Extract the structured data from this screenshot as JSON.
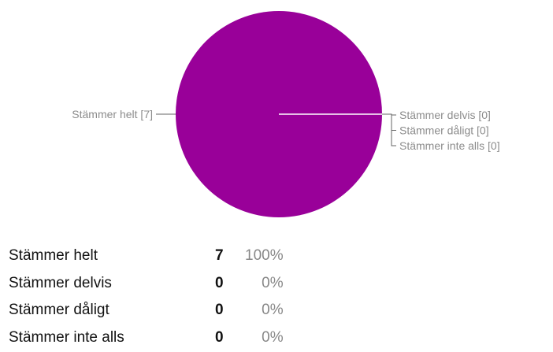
{
  "chart_data": {
    "type": "pie",
    "categories": [
      "Stämmer helt",
      "Stämmer delvis",
      "Stämmer dåligt",
      "Stämmer inte alls"
    ],
    "values": [
      7,
      0,
      0,
      0
    ],
    "callout_labels": [
      "Stämmer helt [7]",
      "Stämmer delvis [0]",
      "Stämmer dåligt [0]",
      "Stämmer inte alls [0]"
    ],
    "colors": [
      "#990099",
      "#ff9900",
      "#dc3912",
      "#3366cc"
    ],
    "title": "",
    "legend": "callouts"
  },
  "summary": {
    "rows": [
      {
        "label": "Stämmer helt",
        "count": "7",
        "percent": "100%"
      },
      {
        "label": "Stämmer delvis",
        "count": "0",
        "percent": "0%"
      },
      {
        "label": "Stämmer dåligt",
        "count": "0",
        "percent": "0%"
      },
      {
        "label": "Stämmer inte alls",
        "count": "0",
        "percent": "0%"
      }
    ]
  }
}
